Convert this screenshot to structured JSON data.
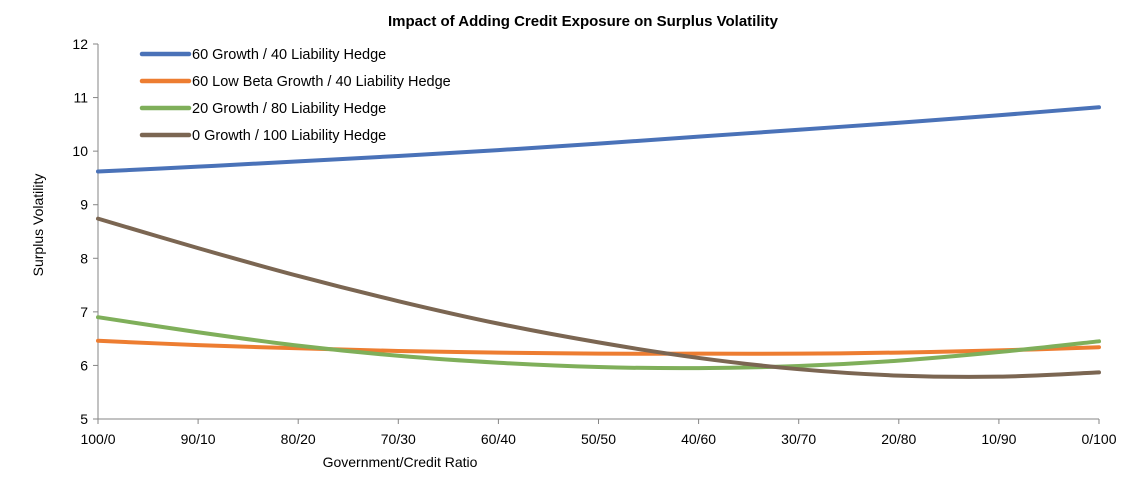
{
  "chart_data": {
    "type": "line",
    "title": "Impact of Adding Credit Exposure on Surplus Volatility",
    "xlabel": "Government/Credit Ratio",
    "ylabel": "Surplus Volatility",
    "ylim": [
      5,
      12
    ],
    "yticks": [
      5,
      6,
      7,
      8,
      9,
      10,
      11,
      12
    ],
    "categories": [
      "100/0",
      "90/10",
      "80/20",
      "70/30",
      "60/40",
      "50/50",
      "40/60",
      "30/70",
      "20/80",
      "10/90",
      "0/100"
    ],
    "legend_position": "top-left",
    "grid": false,
    "series": [
      {
        "name": "60 Growth / 40 Liability Hedge",
        "color": "#4A72B8",
        "values": [
          9.62,
          9.71,
          9.81,
          9.91,
          10.02,
          10.14,
          10.27,
          10.4,
          10.53,
          10.67,
          10.82
        ]
      },
      {
        "name": "60 Low Beta Growth / 40 Liability Hedge",
        "color": "#ED7D31",
        "values": [
          6.46,
          6.38,
          6.32,
          6.27,
          6.24,
          6.22,
          6.22,
          6.22,
          6.24,
          6.28,
          6.34
        ]
      },
      {
        "name": "20 Growth / 80 Liability Hedge",
        "color": "#7FAF5A",
        "values": [
          6.9,
          6.62,
          6.37,
          6.18,
          6.05,
          5.97,
          5.95,
          5.99,
          6.09,
          6.25,
          6.45
        ]
      },
      {
        "name": "0 Growth / 100 Liability Hedge",
        "color": "#7B6652",
        "values": [
          8.74,
          8.19,
          7.67,
          7.2,
          6.78,
          6.43,
          6.14,
          5.93,
          5.81,
          5.79,
          5.87
        ]
      }
    ]
  }
}
